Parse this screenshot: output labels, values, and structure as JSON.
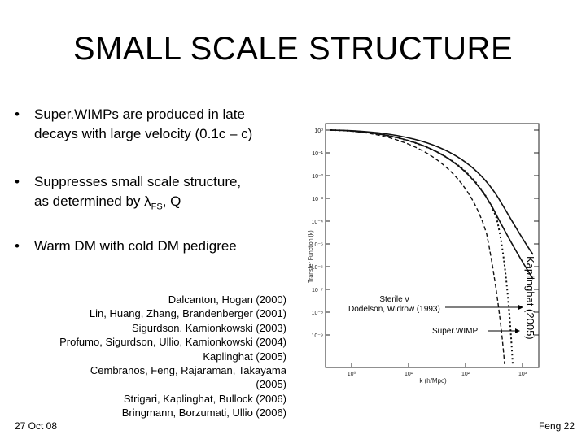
{
  "slide": {
    "title": "SMALL SCALE STRUCTURE",
    "bullets": [
      {
        "symbol": "•",
        "lines": [
          "Super.WIMPs are produced in late",
          "decays with large velocity (0.1c – c)"
        ]
      },
      {
        "symbol": "•",
        "line1": "Suppresses small scale structure,",
        "line2_prefix": "as determined by ",
        "lambda": "λ",
        "sub": "FS",
        "line2_suffix": ", Q"
      },
      {
        "symbol": "•",
        "lines": [
          "Warm DM with cold DM pedigree"
        ]
      }
    ],
    "references": [
      "Dalcanton, Hogan (2000)",
      "Lin, Huang, Zhang, Brandenberger (2001)",
      "Sigurdson, Kamionkowski (2003)",
      "Profumo, Sigurdson, Ullio, Kamionkowski (2004)",
      "Kaplinghat (2005)",
      "Cembranos, Feng, Rajaraman, Takayama",
      "(2005)",
      "Strigari, Kaplinghat, Bullock (2006)",
      "Bringmann, Borzumati, Ullio (2006)"
    ],
    "footer_date": "27 Oct 08",
    "footer_page": "Feng 22"
  },
  "plot": {
    "ylabel": "Transfer Function (k)",
    "xlabel": "k (h/Mpc)",
    "yticks": [
      "10⁰",
      "10⁻¹",
      "10⁻²",
      "10⁻³",
      "10⁻⁴",
      "10⁻⁵",
      "10⁻⁶",
      "10⁻⁷",
      "10⁻⁸",
      "10⁻⁹"
    ],
    "xticks": [
      "10⁰",
      "10¹",
      "10²",
      "10³"
    ],
    "label_sterile_line1": "Sterile ν",
    "label_sterile_line2": "Dodelson, Widrow (1993)",
    "label_superwimp": "Super.WIMP",
    "side_label": "Kaplinghat (2005)"
  }
}
